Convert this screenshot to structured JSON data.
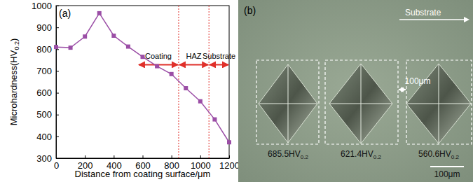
{
  "chart_data": {
    "type": "line",
    "panel": "(a)",
    "ylabel": {
      "text": "Microhardness(HV",
      "sub": "0.2",
      "after": ")"
    },
    "xlabel": "Distance from coating surface/μm",
    "x": [
      0,
      100,
      200,
      300,
      400,
      500,
      600,
      700,
      800,
      900,
      1000,
      1100,
      1200
    ],
    "values": [
      810,
      807,
      858,
      965,
      862,
      812,
      765,
      722,
      686,
      621,
      561,
      478,
      373
    ],
    "color": "#9b4ea6",
    "marker": "square",
    "line_style": "solid",
    "xlim": [
      0,
      1200
    ],
    "xticks": [
      0,
      200,
      400,
      600,
      800,
      1000,
      1200
    ],
    "ylim": [
      300,
      1000
    ],
    "yticks": [
      300,
      400,
      500,
      600,
      700,
      800,
      900,
      1000
    ],
    "boundaries": [
      850,
      1060
    ],
    "regions": [
      "Coating",
      "HAZ",
      "Substrate"
    ]
  },
  "micrograph": {
    "panel": "(b)",
    "direction": "Substrate",
    "spacing": "100μm",
    "indents": [
      {
        "text": "685.5HV",
        "sub": "0.2"
      },
      {
        "text": "621.4HV",
        "sub": "0.2"
      },
      {
        "text": "560.6HV",
        "sub": "0.2"
      }
    ],
    "scale_bar": "100μm"
  }
}
